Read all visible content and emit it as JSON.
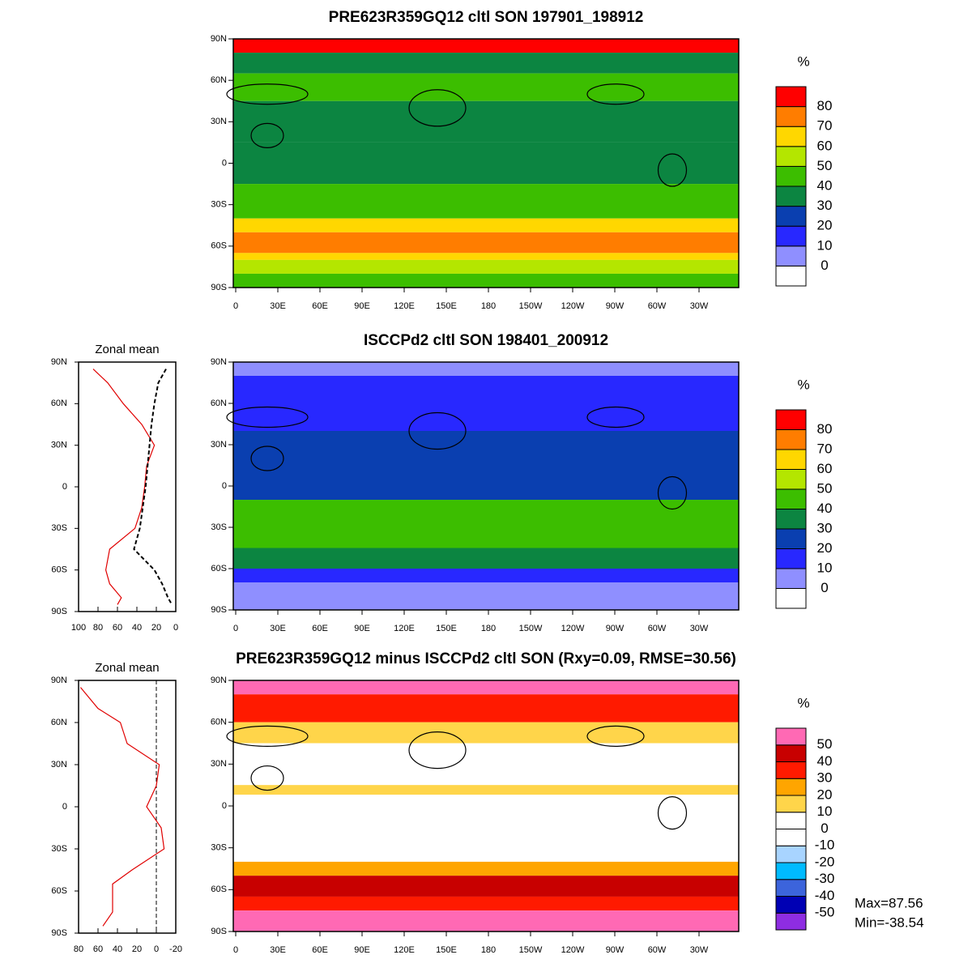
{
  "figure": {
    "maps": [
      {
        "title": "PRE623R359GQ12 cltl SON 197901_198912",
        "unit": "%",
        "colorbar": {
          "colors": [
            "#ffffff",
            "#8f8fff",
            "#2828ff",
            "#0a3fb0",
            "#0c8541",
            "#3cbe00",
            "#b4e600",
            "#ffd700",
            "#ff7d00",
            "#ff0000"
          ],
          "labels": [
            0,
            10,
            20,
            30,
            40,
            50,
            60,
            70,
            80
          ]
        }
      },
      {
        "title": "ISCCPd2 cltl SON 198401_200912",
        "unit": "%",
        "colorbar": {
          "colors": [
            "#ffffff",
            "#8f8fff",
            "#2828ff",
            "#0a3fb0",
            "#0c8541",
            "#3cbe00",
            "#b4e600",
            "#ffd700",
            "#ff7d00",
            "#ff0000"
          ],
          "labels": [
            0,
            10,
            20,
            30,
            40,
            50,
            60,
            70,
            80
          ]
        }
      },
      {
        "title": "PRE623R359GQ12 minus ISCCPd2 cltl SON (Rxy=0.09, RMSE=30.56)",
        "unit": "%",
        "colorbar": {
          "colors": [
            "#8e2de2",
            "#0000b4",
            "#3c64dc",
            "#00bbff",
            "#a8d4ff",
            "#ffffff",
            "#ffffff",
            "#ffd54a",
            "#ffa500",
            "#ff1a00",
            "#c80000",
            "#ff69b4"
          ],
          "labels": [
            -50,
            -40,
            -30,
            -20,
            -10,
            0,
            10,
            20,
            30,
            40,
            50
          ]
        }
      }
    ],
    "map_xticks": [
      "0",
      "30E",
      "60E",
      "90E",
      "120E",
      "150E",
      "180",
      "150W",
      "120W",
      "90W",
      "60W",
      "30W"
    ],
    "map_yticks": [
      "90N",
      "60N",
      "30N",
      "0",
      "30S",
      "60S",
      "90S"
    ],
    "zonal": [
      {
        "title": "Zonal mean",
        "xlim": [
          100,
          0
        ],
        "xticks": [
          100,
          80,
          60,
          40,
          20,
          0
        ],
        "lat": [
          85,
          75,
          60,
          45,
          30,
          15,
          0,
          -15,
          -30,
          -45,
          -60,
          -70,
          -80,
          -85
        ],
        "series": [
          {
            "color": "#e00000",
            "dash": false,
            "values": [
              85,
              70,
              54,
              35,
              22,
              30,
              32,
              35,
              42,
              68,
              72,
              68,
              56,
              60
            ]
          },
          {
            "color": "#000000",
            "dash": true,
            "values": [
              10,
              18,
              22,
              25,
              27,
              29,
              31,
              34,
              37,
              43,
              22,
              14,
              8,
              4
            ]
          }
        ]
      },
      {
        "title": "Zonal mean",
        "xlim": [
          80,
          -20
        ],
        "xticks": [
          80,
          60,
          40,
          20,
          0,
          -20
        ],
        "lat": [
          85,
          70,
          60,
          45,
          30,
          15,
          0,
          -15,
          -30,
          -45,
          -55,
          -65,
          -75,
          -85
        ],
        "series": [
          {
            "color": "#e00000",
            "dash": false,
            "values": [
              78,
              60,
              37,
              30,
              -3,
              0,
              10,
              -5,
              -8,
              25,
              45,
              45,
              45,
              55
            ]
          }
        ]
      }
    ],
    "stats": [
      "Max=87.56",
      "Min=-38.54"
    ]
  }
}
